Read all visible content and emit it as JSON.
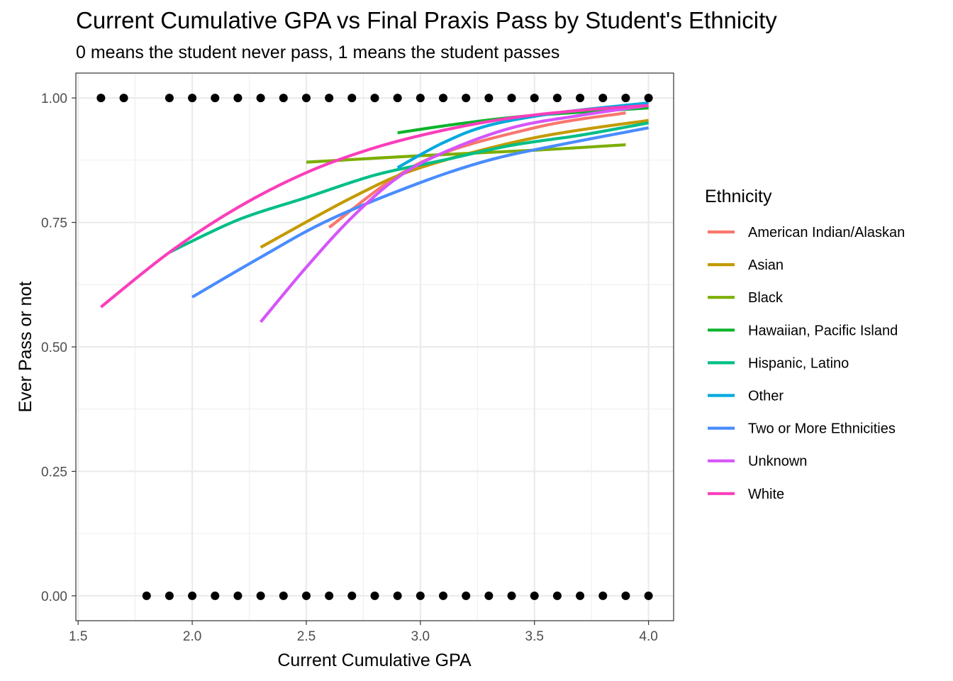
{
  "chart_data": {
    "type": "scatter",
    "title": "Current Cumulative GPA vs Final Praxis Pass by Student's Ethnicity",
    "subtitle": "0 means the student never pass, 1 means the student passes",
    "xlabel": "Current Cumulative GPA",
    "ylabel": "Ever Pass or not",
    "xlim": [
      1.49,
      4.11
    ],
    "ylim": [
      -0.05,
      1.05
    ],
    "x_ticks": [
      "1.5",
      "2.0",
      "2.5",
      "3.0",
      "3.5",
      "4.0"
    ],
    "y_ticks": [
      "0.00",
      "0.25",
      "0.50",
      "0.75",
      "1.00"
    ],
    "x_tick_values": [
      1.5,
      2.0,
      2.5,
      3.0,
      3.5,
      4.0
    ],
    "y_tick_values": [
      0,
      0.25,
      0.5,
      0.75,
      1.0
    ],
    "x_minor_values": [
      1.75,
      2.25,
      2.75,
      3.25,
      3.75
    ],
    "y_minor_values": [
      0.125,
      0.375,
      0.625,
      0.875
    ],
    "grid": true,
    "legend_title": "Ethnicity",
    "legend_position": "right",
    "points": {
      "color": "#000000",
      "y1_x": [
        1.6,
        1.7,
        1.9,
        2.0,
        2.1,
        2.2,
        2.3,
        2.4,
        2.5,
        2.6,
        2.7,
        2.8,
        2.9,
        3.0,
        3.1,
        3.2,
        3.3,
        3.4,
        3.5,
        3.6,
        3.7,
        3.8,
        3.9,
        4.0
      ],
      "y0_x": [
        1.8,
        1.9,
        2.0,
        2.1,
        2.2,
        2.3,
        2.4,
        2.5,
        2.6,
        2.7,
        2.8,
        2.9,
        3.0,
        3.1,
        3.2,
        3.3,
        3.4,
        3.5,
        3.6,
        3.7,
        3.8,
        3.9,
        4.0
      ]
    },
    "series": [
      {
        "name": "American Indian/Alaskan",
        "color": "#F8766D",
        "x": [
          2.6,
          3.0,
          3.5,
          3.9
        ],
        "y": [
          0.74,
          0.87,
          0.94,
          0.97
        ]
      },
      {
        "name": "Asian",
        "color": "#C49A00",
        "x": [
          2.3,
          2.7,
          3.0,
          3.5,
          4.0
        ],
        "y": [
          0.7,
          0.8,
          0.86,
          0.92,
          0.955
        ]
      },
      {
        "name": "Black",
        "color": "#7CAE00",
        "x": [
          2.5,
          3.0,
          3.5,
          3.9
        ],
        "y": [
          0.871,
          0.884,
          0.895,
          0.906
        ]
      },
      {
        "name": "Hawaiian, Pacific Island",
        "color": "#0CB42B",
        "x": [
          2.9,
          3.2,
          3.5,
          4.0
        ],
        "y": [
          0.93,
          0.95,
          0.965,
          0.98
        ]
      },
      {
        "name": "Hispanic, Latino",
        "color": "#00BE87",
        "x": [
          1.9,
          2.2,
          2.5,
          2.8,
          3.1,
          3.4,
          3.7,
          4.0
        ],
        "y": [
          0.69,
          0.755,
          0.8,
          0.845,
          0.875,
          0.905,
          0.925,
          0.95
        ]
      },
      {
        "name": "Other",
        "color": "#00A9DD",
        "x": [
          2.9,
          3.1,
          3.3,
          3.6,
          4.0
        ],
        "y": [
          0.86,
          0.91,
          0.945,
          0.97,
          0.99
        ]
      },
      {
        "name": "Two or More Ethnicities",
        "color": "#4A8CFF",
        "x": [
          2.0,
          2.3,
          2.6,
          3.0,
          3.3,
          3.6,
          4.0
        ],
        "y": [
          0.6,
          0.68,
          0.755,
          0.83,
          0.875,
          0.905,
          0.94
        ]
      },
      {
        "name": "Unknown",
        "color": "#D654FA",
        "x": [
          2.3,
          2.5,
          2.7,
          2.9,
          3.1,
          3.4,
          3.7,
          4.0
        ],
        "y": [
          0.55,
          0.66,
          0.76,
          0.84,
          0.89,
          0.94,
          0.965,
          0.985
        ]
      },
      {
        "name": "White",
        "color": "#FA3EBB",
        "x": [
          1.6,
          1.9,
          2.2,
          2.5,
          2.8,
          3.1,
          3.4,
          3.7,
          4.0
        ],
        "y": [
          0.58,
          0.69,
          0.78,
          0.85,
          0.9,
          0.935,
          0.96,
          0.975,
          0.985
        ]
      }
    ]
  }
}
